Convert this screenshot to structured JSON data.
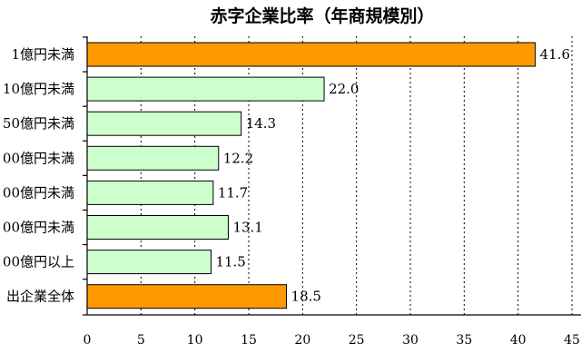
{
  "chart_data": {
    "type": "bar",
    "orientation": "horizontal",
    "title": "赤字企業比率（年商規模別）",
    "categories": [
      "1億円未満",
      "10億円未満",
      "50億円未満",
      "00億円未満",
      "00億円未満",
      "00億円未満",
      "00億円以上",
      "出企業全体"
    ],
    "values": [
      41.6,
      22.0,
      14.3,
      12.2,
      11.7,
      13.1,
      11.5,
      18.5
    ],
    "value_labels": [
      "41.6",
      "22.0",
      "14.3",
      "12.2",
      "11.7",
      "13.1",
      "11.5",
      "18.5"
    ],
    "bar_colors": [
      "#FF9900",
      "#CCFFCC",
      "#CCFFCC",
      "#CCFFCC",
      "#CCFFCC",
      "#CCFFCC",
      "#CCFFCC",
      "#FF9900"
    ],
    "xlim": [
      0,
      45
    ],
    "xticks": [
      0,
      5,
      10,
      15,
      20,
      25,
      30,
      35,
      40,
      45
    ],
    "xlabel": "",
    "ylabel": "",
    "grid": "vertical dotted"
  }
}
